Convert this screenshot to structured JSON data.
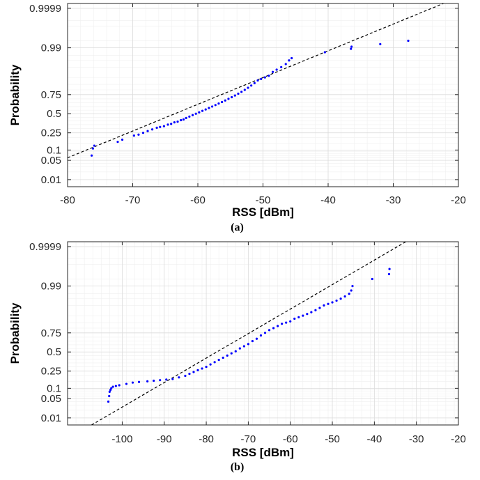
{
  "chart_data": [
    {
      "type": "scatter",
      "panel_label": "(a)",
      "xlabel": "RSS [dBm]",
      "ylabel": "Probability",
      "xlim": [
        -80,
        -20
      ],
      "xticks": [
        -80,
        -70,
        -60,
        -50,
        -40,
        -30,
        -20
      ],
      "xtick_labels": [
        "-80",
        "-70",
        "-60",
        "-50",
        "-40",
        "-30",
        "-20"
      ],
      "yscale": "normal-probability",
      "ylim": [
        0.005,
        0.99995
      ],
      "yticks": [
        0.01,
        0.05,
        0.1,
        0.25,
        0.5,
        0.75,
        0.99,
        0.9999
      ],
      "ytick_labels": [
        "0.01",
        "0.05",
        "0.1",
        "0.25",
        "0.5",
        "0.75",
        "0.99",
        "0.9999"
      ],
      "grid": true,
      "marker_color": "#0000ff",
      "fit_line_color": "#000000",
      "fit_line": {
        "x": [
          -80,
          -20
        ],
        "y": [
          0.06,
          0.99998
        ]
      },
      "series": [
        {
          "points": [
            [
              -76.3,
              0.07
            ],
            [
              -76.1,
              0.11
            ],
            [
              -75.9,
              0.13
            ],
            [
              -72.3,
              0.16
            ],
            [
              -71.6,
              0.18
            ],
            [
              -69.8,
              0.22
            ],
            [
              -69.1,
              0.23
            ],
            [
              -68.4,
              0.25
            ],
            [
              -67.7,
              0.27
            ],
            [
              -67.0,
              0.29
            ],
            [
              -66.3,
              0.31
            ],
            [
              -65.8,
              0.32
            ],
            [
              -65.2,
              0.33
            ],
            [
              -64.6,
              0.35
            ],
            [
              -64.1,
              0.36
            ],
            [
              -63.6,
              0.38
            ],
            [
              -63.1,
              0.39
            ],
            [
              -62.6,
              0.41
            ],
            [
              -62.2,
              0.42
            ],
            [
              -61.8,
              0.44
            ],
            [
              -61.3,
              0.46
            ],
            [
              -60.8,
              0.48
            ],
            [
              -60.3,
              0.5
            ],
            [
              -59.8,
              0.52
            ],
            [
              -59.3,
              0.54
            ],
            [
              -58.8,
              0.56
            ],
            [
              -58.3,
              0.58
            ],
            [
              -57.8,
              0.6
            ],
            [
              -57.3,
              0.62
            ],
            [
              -56.8,
              0.64
            ],
            [
              -56.3,
              0.66
            ],
            [
              -55.8,
              0.68
            ],
            [
              -55.3,
              0.7
            ],
            [
              -54.8,
              0.72
            ],
            [
              -54.3,
              0.74
            ],
            [
              -53.8,
              0.76
            ],
            [
              -53.3,
              0.78
            ],
            [
              -52.8,
              0.8
            ],
            [
              -52.3,
              0.82
            ],
            [
              -51.8,
              0.84
            ],
            [
              -51.3,
              0.86
            ],
            [
              -50.8,
              0.88
            ],
            [
              -50.3,
              0.89
            ],
            [
              -49.7,
              0.9
            ],
            [
              -49.1,
              0.91
            ],
            [
              -48.5,
              0.93
            ],
            [
              -47.9,
              0.94
            ],
            [
              -47.2,
              0.95
            ],
            [
              -46.5,
              0.96
            ],
            [
              -46.0,
              0.97
            ],
            [
              -45.6,
              0.975
            ],
            [
              -40.5,
              0.985
            ],
            [
              -36.5,
              0.989
            ],
            [
              -36.4,
              0.991
            ],
            [
              -32.0,
              0.993
            ],
            [
              -27.7,
              0.995
            ]
          ]
        }
      ]
    },
    {
      "type": "scatter",
      "panel_label": "(b)",
      "xlabel": "RSS [dBm]",
      "ylabel": "Probability",
      "xlim": [
        -113,
        -20
      ],
      "xticks": [
        -100,
        -90,
        -80,
        -70,
        -60,
        -50,
        -40,
        -30,
        -20
      ],
      "xtick_labels": [
        "-100",
        "-90",
        "-80",
        "-70",
        "-60",
        "-50",
        "-40",
        "-30",
        "-20"
      ],
      "yscale": "normal-probability",
      "ylim": [
        0.005,
        0.99995
      ],
      "yticks": [
        0.01,
        0.05,
        0.1,
        0.25,
        0.5,
        0.75,
        0.99,
        0.9999
      ],
      "ytick_labels": [
        "0.01",
        "0.05",
        "0.1",
        "0.25",
        "0.5",
        "0.75",
        "0.99",
        "0.9999"
      ],
      "grid": true,
      "marker_color": "#0000ff",
      "fit_line_color": "#000000",
      "fit_line": {
        "x": [
          -107.3,
          -32.5
        ],
        "y": [
          0.005,
          0.99995
        ]
      },
      "series": [
        {
          "points": [
            [
              -103.3,
              0.04
            ],
            [
              -103.1,
              0.06
            ],
            [
              -103.0,
              0.08
            ],
            [
              -102.8,
              0.09
            ],
            [
              -102.6,
              0.1
            ],
            [
              -102.2,
              0.11
            ],
            [
              -101.5,
              0.115
            ],
            [
              -100.7,
              0.12
            ],
            [
              -99.0,
              0.13
            ],
            [
              -97.5,
              0.14
            ],
            [
              -96.0,
              0.145
            ],
            [
              -94.0,
              0.15
            ],
            [
              -92.5,
              0.155
            ],
            [
              -91.0,
              0.16
            ],
            [
              -89.5,
              0.165
            ],
            [
              -88.0,
              0.17
            ],
            [
              -86.5,
              0.185
            ],
            [
              -85.0,
              0.2
            ],
            [
              -84.0,
              0.22
            ],
            [
              -83.0,
              0.24
            ],
            [
              -82.0,
              0.26
            ],
            [
              -81.0,
              0.28
            ],
            [
              -80.0,
              0.3
            ],
            [
              -79.0,
              0.33
            ],
            [
              -78.0,
              0.36
            ],
            [
              -77.0,
              0.39
            ],
            [
              -76.0,
              0.42
            ],
            [
              -75.0,
              0.45
            ],
            [
              -74.0,
              0.48
            ],
            [
              -73.0,
              0.51
            ],
            [
              -72.0,
              0.55
            ],
            [
              -71.0,
              0.58
            ],
            [
              -70.0,
              0.61
            ],
            [
              -69.0,
              0.65
            ],
            [
              -68.0,
              0.68
            ],
            [
              -67.0,
              0.72
            ],
            [
              -66.0,
              0.75
            ],
            [
              -65.0,
              0.78
            ],
            [
              -64.0,
              0.8
            ],
            [
              -63.0,
              0.82
            ],
            [
              -62.0,
              0.84
            ],
            [
              -61.0,
              0.85
            ],
            [
              -60.0,
              0.86
            ],
            [
              -59.0,
              0.88
            ],
            [
              -58.0,
              0.89
            ],
            [
              -57.0,
              0.9
            ],
            [
              -56.0,
              0.91
            ],
            [
              -55.0,
              0.92
            ],
            [
              -54.0,
              0.93
            ],
            [
              -53.0,
              0.94
            ],
            [
              -52.0,
              0.95
            ],
            [
              -51.0,
              0.955
            ],
            [
              -50.0,
              0.96
            ],
            [
              -49.0,
              0.965
            ],
            [
              -48.0,
              0.97
            ],
            [
              -47.0,
              0.975
            ],
            [
              -46.0,
              0.98
            ],
            [
              -45.5,
              0.985
            ],
            [
              -45.2,
              0.99
            ],
            [
              -40.5,
              0.995
            ],
            [
              -36.5,
              0.997
            ],
            [
              -36.4,
              0.9983
            ]
          ]
        }
      ]
    }
  ]
}
